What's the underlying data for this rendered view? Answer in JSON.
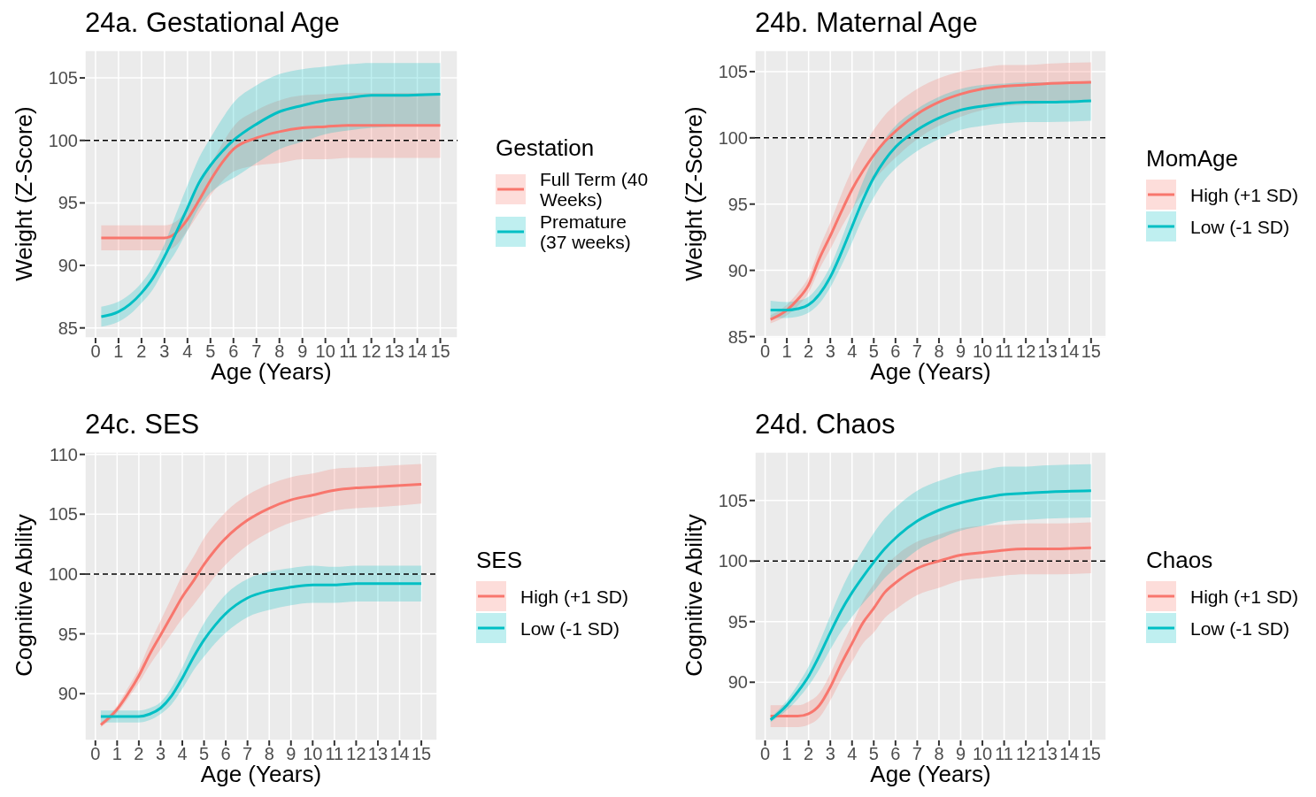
{
  "chart_data": [
    {
      "type": "line",
      "title": "24a. Gestational Age",
      "xlabel": "Age (Years)",
      "ylabel": "Weight (Z-Score)",
      "legend_title": "Gestation",
      "legend": "right",
      "grid": true,
      "xlim": [
        -0.46,
        15.75
      ],
      "ylim": [
        84.2,
        107.2
      ],
      "xticks": [
        0,
        1,
        2,
        3,
        4,
        5,
        6,
        7,
        8,
        9,
        10,
        11,
        12,
        13,
        14,
        15
      ],
      "yticks": [
        85,
        90,
        95,
        100,
        105
      ],
      "x": [
        0.25,
        1,
        1.5,
        2,
        2.5,
        3,
        3.5,
        4,
        4.5,
        5,
        5.5,
        6,
        7,
        8,
        9,
        10,
        11,
        12,
        13,
        15
      ],
      "ref_lines": [
        {
          "axis": "y",
          "value": 100,
          "color": "#000000",
          "line_style": "dashed"
        }
      ],
      "series": [
        {
          "name": "Full Term (40 Weeks)",
          "color": "#f8766d",
          "values": [
            92.2,
            92.2,
            92.2,
            92.2,
            92.2,
            92.2,
            92.6,
            93.7,
            95.2,
            96.8,
            98.2,
            99.3,
            100.2,
            100.7,
            101.0,
            101.1,
            101.2,
            101.2,
            101.2,
            101.2
          ],
          "lower": [
            91.2,
            91.2,
            91.2,
            91.2,
            91.2,
            91.2,
            91.6,
            92.8,
            94.2,
            95.6,
            96.7,
            97.5,
            98.0,
            98.2,
            98.5,
            98.5,
            98.6,
            98.6,
            98.6,
            98.6
          ],
          "upper": [
            93.2,
            93.2,
            93.2,
            93.2,
            93.2,
            93.2,
            93.5,
            94.6,
            96.3,
            98.0,
            99.7,
            101.1,
            102.4,
            103.2,
            103.6,
            103.7,
            103.8,
            103.8,
            103.8,
            103.8
          ]
        },
        {
          "name": "Premature (37 weeks)",
          "color": "#00bfc4",
          "values": [
            85.9,
            86.3,
            86.9,
            87.8,
            89.0,
            90.7,
            92.6,
            94.6,
            96.6,
            98.0,
            99.1,
            100.0,
            101.3,
            102.3,
            102.8,
            103.2,
            103.4,
            103.6,
            103.6,
            103.7
          ],
          "lower": [
            85.1,
            85.5,
            86.1,
            87.0,
            88.1,
            89.7,
            91.1,
            92.8,
            94.6,
            95.8,
            96.5,
            97.0,
            98.2,
            99.3,
            99.9,
            100.5,
            100.8,
            101.0,
            101.1,
            101.2
          ],
          "upper": [
            86.7,
            87.1,
            87.7,
            88.6,
            89.9,
            91.7,
            94.1,
            96.4,
            98.6,
            100.2,
            101.7,
            103.0,
            104.4,
            105.3,
            105.7,
            105.9,
            106.1,
            106.2,
            106.2,
            106.2
          ]
        }
      ]
    },
    {
      "type": "line",
      "title": "24b. Maternal Age",
      "xlabel": "Age (Years)",
      "ylabel": "Weight (Z-Score)",
      "legend_title": "MomAge",
      "legend": "right",
      "grid": true,
      "xlim": [
        -0.47,
        15.7
      ],
      "ylim": [
        84.9,
        106.6
      ],
      "xticks": [
        0,
        1,
        2,
        3,
        4,
        5,
        6,
        7,
        8,
        9,
        10,
        11,
        12,
        13,
        14,
        15
      ],
      "yticks": [
        85,
        90,
        95,
        100,
        105
      ],
      "x": [
        0.25,
        1,
        1.5,
        2,
        2.5,
        3,
        3.5,
        4,
        4.5,
        5,
        5.5,
        6,
        7,
        8,
        9,
        10,
        11,
        12,
        13,
        15
      ],
      "ref_lines": [
        {
          "axis": "y",
          "value": 100,
          "color": "#000000",
          "line_style": "dashed"
        }
      ],
      "series": [
        {
          "name": "High (+1 SD)",
          "color": "#f8766d",
          "values": [
            86.3,
            87.0,
            87.8,
            88.9,
            90.9,
            92.6,
            94.4,
            96.1,
            97.5,
            98.7,
            99.7,
            100.5,
            101.8,
            102.7,
            103.3,
            103.7,
            103.9,
            104.0,
            104.1,
            104.2
          ],
          "lower": [
            86.0,
            86.6,
            87.3,
            88.3,
            90.1,
            91.6,
            93.2,
            94.6,
            95.8,
            96.8,
            97.7,
            98.5,
            99.9,
            100.9,
            101.6,
            102.1,
            102.4,
            102.5,
            102.6,
            102.7
          ],
          "upper": [
            86.6,
            87.4,
            88.3,
            89.5,
            91.7,
            93.6,
            95.7,
            97.6,
            99.2,
            100.6,
            101.7,
            102.5,
            103.7,
            104.5,
            105.0,
            105.3,
            105.5,
            105.5,
            105.6,
            105.7
          ]
        },
        {
          "name": "Low (-1 SD)",
          "color": "#00bfc4",
          "values": [
            87.0,
            87.0,
            87.1,
            87.4,
            88.2,
            89.5,
            91.3,
            93.3,
            95.3,
            97.0,
            98.3,
            99.3,
            100.6,
            101.5,
            102.1,
            102.4,
            102.6,
            102.7,
            102.7,
            102.8
          ],
          "lower": [
            86.4,
            86.4,
            86.5,
            86.8,
            87.5,
            88.7,
            90.3,
            92.1,
            94.0,
            95.5,
            96.8,
            97.7,
            99.0,
            99.9,
            100.6,
            100.9,
            101.1,
            101.2,
            101.2,
            101.3
          ],
          "upper": [
            87.7,
            87.6,
            87.7,
            88.0,
            88.9,
            90.3,
            92.3,
            94.5,
            96.7,
            98.5,
            99.9,
            100.9,
            102.2,
            103.1,
            103.7,
            104.0,
            104.1,
            104.2,
            104.2,
            104.3
          ]
        }
      ]
    },
    {
      "type": "line",
      "title": "24c. SES",
      "xlabel": "Age (Years)",
      "ylabel": "Cognitive Ability",
      "legend_title": "SES",
      "legend": "right",
      "grid": true,
      "xlim": [
        -0.48,
        15.73
      ],
      "ylim": [
        86.1,
        110.2
      ],
      "xticks": [
        0,
        1,
        2,
        3,
        4,
        5,
        6,
        7,
        8,
        9,
        10,
        11,
        12,
        13,
        14,
        15
      ],
      "yticks": [
        90,
        95,
        100,
        105,
        110
      ],
      "x": [
        0.25,
        1,
        1.5,
        2,
        2.5,
        3,
        3.5,
        4,
        4.5,
        5,
        5.5,
        6,
        7,
        8,
        9,
        10,
        11,
        12,
        13,
        15
      ],
      "ref_lines": [
        {
          "axis": "y",
          "value": 100,
          "color": "#000000",
          "line_style": "dashed"
        }
      ],
      "series": [
        {
          "name": "High (+1 SD)",
          "color": "#f8766d",
          "values": [
            87.4,
            88.7,
            90.0,
            91.5,
            93.3,
            94.9,
            96.5,
            98.1,
            99.4,
            100.8,
            102.0,
            103.0,
            104.5,
            105.5,
            106.2,
            106.6,
            107.0,
            107.2,
            107.3,
            107.5
          ],
          "lower": [
            87.2,
            88.4,
            89.6,
            90.9,
            92.4,
            93.7,
            95.0,
            96.3,
            97.4,
            98.6,
            99.8,
            100.8,
            102.4,
            103.5,
            104.3,
            104.8,
            105.3,
            105.5,
            105.6,
            105.9
          ],
          "upper": [
            87.6,
            89.0,
            90.5,
            92.1,
            94.2,
            96.1,
            98.0,
            99.9,
            101.4,
            103.0,
            104.2,
            105.2,
            106.6,
            107.5,
            108.1,
            108.4,
            108.8,
            108.9,
            109.0,
            109.2
          ]
        },
        {
          "name": "Low (-1 SD)",
          "color": "#00bfc4",
          "values": [
            88.1,
            88.1,
            88.1,
            88.1,
            88.3,
            88.8,
            89.8,
            91.3,
            93.0,
            94.5,
            95.7,
            96.7,
            98.0,
            98.6,
            98.9,
            99.1,
            99.1,
            99.2,
            99.2,
            99.2
          ],
          "lower": [
            87.6,
            87.6,
            87.6,
            87.6,
            87.8,
            88.3,
            89.1,
            90.4,
            91.9,
            93.1,
            94.2,
            95.1,
            96.4,
            97.0,
            97.4,
            97.6,
            97.6,
            97.7,
            97.7,
            97.7
          ],
          "upper": [
            88.6,
            88.6,
            88.6,
            88.6,
            88.8,
            89.3,
            90.5,
            92.2,
            94.2,
            95.9,
            97.2,
            98.3,
            99.6,
            100.2,
            100.5,
            100.7,
            100.6,
            100.7,
            100.7,
            100.7
          ]
        }
      ]
    },
    {
      "type": "line",
      "title": "24d. Chaos",
      "xlabel": "Age (Years)",
      "ylabel": "Cognitive Ability",
      "legend_title": "Chaos",
      "legend": "right",
      "grid": true,
      "xlim": [
        -0.47,
        15.7
      ],
      "ylim": [
        85.2,
        109
      ],
      "xticks": [
        0,
        1,
        2,
        3,
        4,
        5,
        6,
        7,
        8,
        9,
        10,
        11,
        12,
        13,
        14,
        15
      ],
      "yticks": [
        90,
        95,
        100,
        105
      ],
      "x": [
        0.25,
        1,
        1.5,
        2,
        2.5,
        3,
        3.5,
        4,
        4.5,
        5,
        5.5,
        6,
        7,
        8,
        9,
        10,
        11,
        12,
        13,
        15
      ],
      "ref_lines": [
        {
          "axis": "y",
          "value": 100,
          "color": "#000000",
          "line_style": "dashed"
        }
      ],
      "series": [
        {
          "name": "High (+1 SD)",
          "color": "#f8766d",
          "values": [
            87.2,
            87.2,
            87.2,
            87.4,
            88.1,
            89.6,
            91.5,
            93.2,
            94.9,
            96.1,
            97.4,
            98.2,
            99.4,
            100.0,
            100.5,
            100.7,
            100.9,
            101.0,
            101.0,
            101.1
          ],
          "lower": [
            86.3,
            86.3,
            86.3,
            86.5,
            87.1,
            88.5,
            90.2,
            91.7,
            93.2,
            94.1,
            95.3,
            96.0,
            97.2,
            97.8,
            98.4,
            98.6,
            98.8,
            98.9,
            98.9,
            99.0
          ],
          "upper": [
            88.1,
            88.1,
            88.1,
            88.4,
            89.1,
            90.7,
            92.8,
            94.7,
            96.7,
            98.1,
            99.5,
            100.4,
            101.6,
            102.2,
            102.7,
            102.9,
            103.0,
            103.1,
            103.1,
            103.2
          ]
        },
        {
          "name": "Low (-1 SD)",
          "color": "#00bfc4",
          "values": [
            86.9,
            88.1,
            89.2,
            90.5,
            92.2,
            94.1,
            95.9,
            97.4,
            98.7,
            99.9,
            101.0,
            101.9,
            103.3,
            104.2,
            104.8,
            105.2,
            105.5,
            105.6,
            105.7,
            105.8
          ],
          "lower": [
            86.7,
            87.7,
            88.6,
            89.7,
            91.1,
            92.7,
            94.2,
            95.4,
            96.5,
            97.5,
            98.6,
            99.4,
            100.9,
            101.8,
            102.5,
            102.9,
            103.3,
            103.4,
            103.5,
            103.6
          ],
          "upper": [
            87.1,
            88.5,
            89.8,
            91.3,
            93.3,
            95.5,
            97.6,
            99.4,
            100.9,
            102.3,
            103.5,
            104.4,
            105.8,
            106.6,
            107.2,
            107.5,
            107.8,
            107.8,
            107.9,
            108.0
          ]
        }
      ]
    }
  ]
}
